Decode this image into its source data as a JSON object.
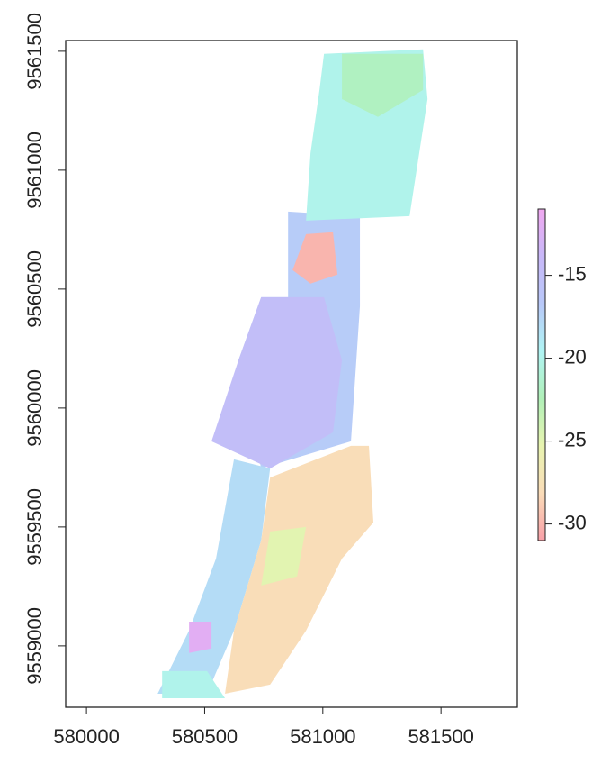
{
  "chart_data": {
    "type": "raster",
    "xlim": [
      579912,
      581823
    ],
    "ylim": [
      9558742,
      9561545
    ],
    "xticks": [
      580000,
      580500,
      581000,
      581500
    ],
    "yticks": [
      9559000,
      9559500,
      9560000,
      9560500,
      9561000,
      9561500
    ],
    "zlim": [
      -31,
      -11
    ],
    "zticks": [
      -15,
      -20,
      -25,
      -30
    ],
    "palette": [
      "#f8a0a8",
      "#fadcb8",
      "#e8f4b0",
      "#b0f0b8",
      "#b0f4f4",
      "#b8c8f8",
      "#c8b8f8",
      "#f0a8f0"
    ],
    "regions": [
      {
        "value": -17,
        "points": [
          [
            580853,
            9560826
          ],
          [
            581157,
            9560807
          ],
          [
            581157,
            9560428
          ],
          [
            581119,
            9559860
          ],
          [
            580739,
            9559746
          ],
          [
            580643,
            9560201
          ],
          [
            580739,
            9560466
          ],
          [
            580853,
            9560466
          ]
        ]
      },
      {
        "value": -15,
        "points": [
          [
            580739,
            9560466
          ],
          [
            581005,
            9560466
          ],
          [
            581081,
            9560201
          ],
          [
            581043,
            9559898
          ],
          [
            580777,
            9559746
          ],
          [
            580529,
            9559860
          ],
          [
            580643,
            9560201
          ]
        ]
      },
      {
        "value": -20,
        "points": [
          [
            581005,
            9561489
          ],
          [
            581424,
            9561508
          ],
          [
            581443,
            9561299
          ],
          [
            581367,
            9560807
          ],
          [
            580929,
            9560788
          ],
          [
            580948,
            9561072
          ],
          [
            580986,
            9561337
          ]
        ]
      },
      {
        "value": -22,
        "points": [
          [
            581081,
            9561489
          ],
          [
            581424,
            9561489
          ],
          [
            581424,
            9561337
          ],
          [
            581233,
            9561224
          ],
          [
            581081,
            9561299
          ]
        ]
      },
      {
        "value": -30,
        "points": [
          [
            580929,
            9560731
          ],
          [
            581043,
            9560739
          ],
          [
            581062,
            9560561
          ],
          [
            580948,
            9560523
          ],
          [
            580872,
            9560580
          ]
        ]
      },
      {
        "value": -18,
        "points": [
          [
            580624,
            9559784
          ],
          [
            580777,
            9559746
          ],
          [
            580739,
            9559443
          ],
          [
            580624,
            9559064
          ],
          [
            580510,
            9558799
          ],
          [
            580301,
            9558799
          ],
          [
            580434,
            9559064
          ],
          [
            580548,
            9559367
          ]
        ]
      },
      {
        "value": -28,
        "points": [
          [
            581119,
            9559841
          ],
          [
            581195,
            9559841
          ],
          [
            581214,
            9559519
          ],
          [
            581081,
            9559367
          ],
          [
            580929,
            9559064
          ],
          [
            580777,
            9558837
          ],
          [
            580586,
            9558799
          ],
          [
            580624,
            9559064
          ],
          [
            580739,
            9559443
          ],
          [
            580777,
            9559708
          ]
        ]
      },
      {
        "value": -25,
        "points": [
          [
            580777,
            9559481
          ],
          [
            580929,
            9559500
          ],
          [
            580891,
            9559292
          ],
          [
            580739,
            9559254
          ]
        ]
      },
      {
        "value": -12,
        "points": [
          [
            580434,
            9559102
          ],
          [
            580529,
            9559102
          ],
          [
            580529,
            9558989
          ],
          [
            580434,
            9558970
          ]
        ]
      },
      {
        "value": -20,
        "points": [
          [
            580320,
            9558894
          ],
          [
            580510,
            9558894
          ],
          [
            580586,
            9558780
          ],
          [
            580320,
            9558780
          ]
        ]
      }
    ]
  }
}
